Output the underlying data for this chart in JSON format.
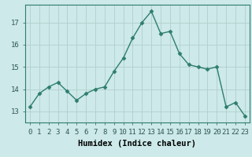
{
  "x": [
    0,
    1,
    2,
    3,
    4,
    5,
    6,
    7,
    8,
    9,
    10,
    11,
    12,
    13,
    14,
    15,
    16,
    17,
    18,
    19,
    20,
    21,
    22,
    23
  ],
  "y": [
    13.2,
    13.8,
    14.1,
    14.3,
    13.9,
    13.5,
    13.8,
    14.0,
    14.1,
    14.8,
    15.4,
    16.3,
    17.0,
    17.5,
    16.5,
    16.6,
    15.6,
    15.1,
    15.0,
    14.9,
    15.0,
    13.2,
    13.4,
    12.8
  ],
  "line_color": "#2e7d6e",
  "marker": "D",
  "markersize": 2.5,
  "linewidth": 1.0,
  "bg_color": "#cde9e9",
  "grid_color": "#b0d0cc",
  "xlabel": "Humidex (Indice chaleur)",
  "xlim": [
    -0.5,
    23.5
  ],
  "ylim": [
    12.5,
    17.8
  ],
  "yticks": [
    13,
    14,
    15,
    16,
    17
  ],
  "xtick_labels": [
    "0",
    "1",
    "2",
    "3",
    "4",
    "5",
    "6",
    "7",
    "8",
    "9",
    "10",
    "11",
    "12",
    "13",
    "14",
    "15",
    "16",
    "17",
    "18",
    "19",
    "20",
    "21",
    "22",
    "23"
  ],
  "xlabel_fontsize": 7.5,
  "tick_fontsize": 6.5
}
